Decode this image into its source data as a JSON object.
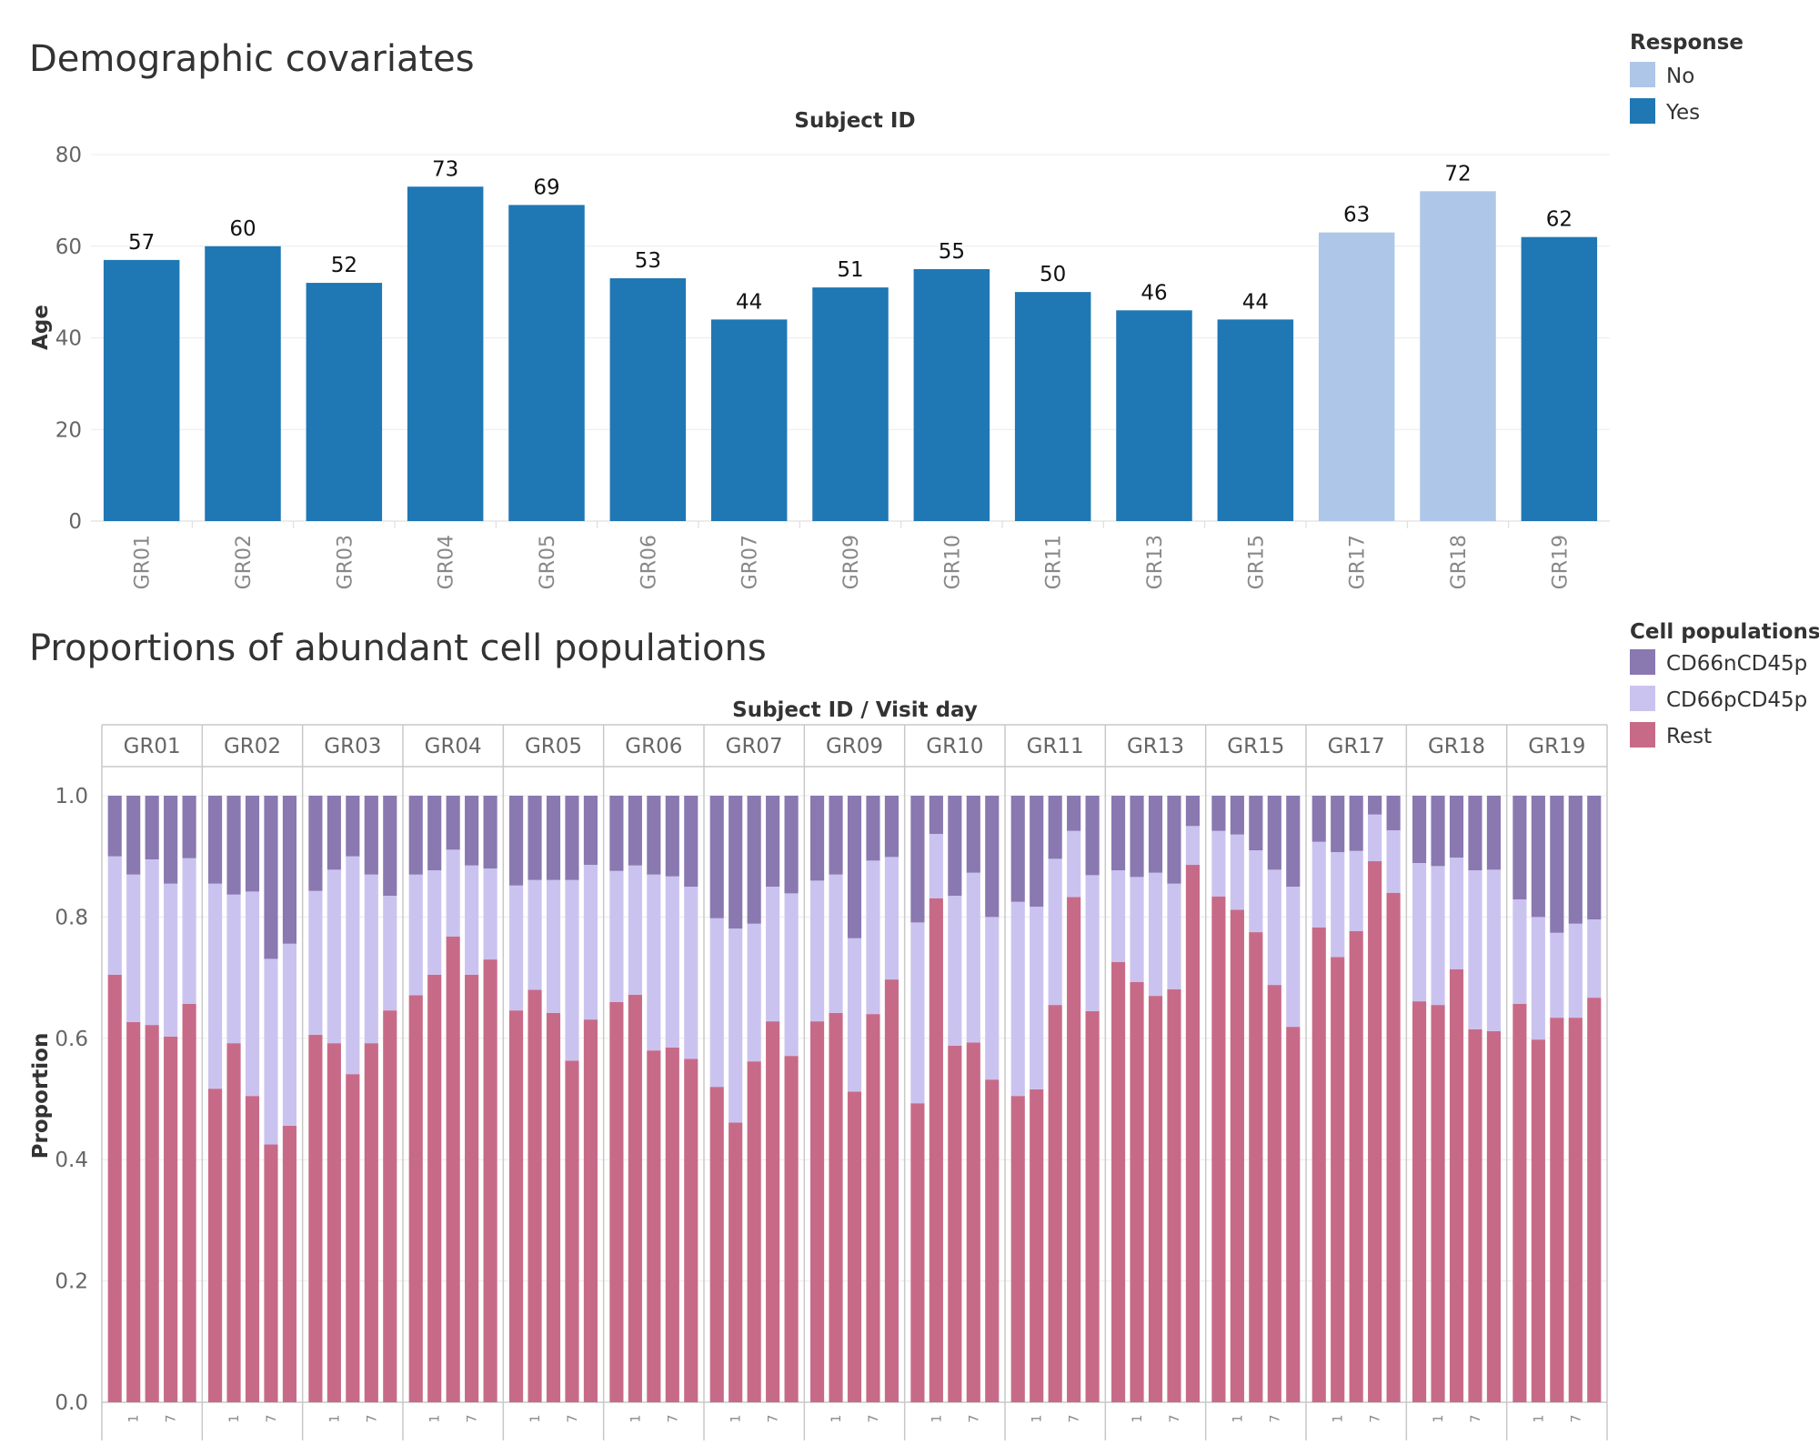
{
  "chart_data": [
    {
      "type": "bar",
      "title": "Demographic covariates",
      "xlabel": "Subject ID",
      "ylabel": "Age",
      "ylim": [
        0,
        80
      ],
      "yticks": [
        0,
        20,
        40,
        60,
        80
      ],
      "grid": true,
      "legend": {
        "title": "Response",
        "position": "top-right",
        "entries": [
          {
            "label": "No",
            "color": "#aec7e8"
          },
          {
            "label": "Yes",
            "color": "#1f77b4"
          }
        ]
      },
      "categories": [
        "GR01",
        "GR02",
        "GR03",
        "GR04",
        "GR05",
        "GR06",
        "GR07",
        "GR09",
        "GR10",
        "GR11",
        "GR13",
        "GR15",
        "GR17",
        "GR18",
        "GR19"
      ],
      "values": [
        57,
        60,
        52,
        73,
        69,
        53,
        44,
        51,
        55,
        50,
        46,
        44,
        63,
        72,
        62
      ],
      "response": [
        "Yes",
        "Yes",
        "Yes",
        "Yes",
        "Yes",
        "Yes",
        "Yes",
        "Yes",
        "Yes",
        "Yes",
        "Yes",
        "Yes",
        "No",
        "No",
        "Yes"
      ],
      "data_labels": true
    },
    {
      "type": "bar",
      "stacked": true,
      "title": "Proportions of abundant cell populations",
      "xlabel": "Subject ID  /  Visit day",
      "ylabel": "Proportion",
      "ylim": [
        0,
        1.0
      ],
      "yticks": [
        "0.0",
        "0.2",
        "0.4",
        "0.6",
        "0.8",
        "1.0"
      ],
      "grid": true,
      "legend": {
        "title": "Cell populations",
        "position": "top-right",
        "entries": [
          {
            "label": "CD66nCD45p",
            "color": "#8a78b0"
          },
          {
            "label": "CD66pCD45p",
            "color": "#cbc3ef"
          },
          {
            "label": "Rest",
            "color": "#c76a88"
          }
        ]
      },
      "visit_tick_labels": [
        "1",
        "7"
      ],
      "subjects": [
        {
          "id": "GR01",
          "rest": [
            0.705,
            0.627,
            0.622,
            0.603,
            0.657
          ],
          "cd66p": [
            0.195,
            0.243,
            0.273,
            0.252,
            0.24
          ]
        },
        {
          "id": "GR02",
          "rest": [
            0.517,
            0.592,
            0.505,
            0.425,
            0.456
          ],
          "cd66p": [
            0.338,
            0.245,
            0.337,
            0.306,
            0.3
          ]
        },
        {
          "id": "GR03",
          "rest": [
            0.606,
            0.592,
            0.541,
            0.592,
            0.646
          ],
          "cd66p": [
            0.237,
            0.286,
            0.359,
            0.278,
            0.189
          ]
        },
        {
          "id": "GR04",
          "rest": [
            0.671,
            0.705,
            0.768,
            0.705,
            0.73
          ],
          "cd66p": [
            0.199,
            0.172,
            0.143,
            0.18,
            0.15
          ]
        },
        {
          "id": "GR05",
          "rest": [
            0.646,
            0.68,
            0.642,
            0.563,
            0.631
          ],
          "cd66p": [
            0.206,
            0.181,
            0.219,
            0.298,
            0.255
          ]
        },
        {
          "id": "GR06",
          "rest": [
            0.66,
            0.672,
            0.58,
            0.585,
            0.566
          ],
          "cd66p": [
            0.216,
            0.213,
            0.29,
            0.282,
            0.284
          ]
        },
        {
          "id": "GR07",
          "rest": [
            0.52,
            0.461,
            0.562,
            0.628,
            0.571
          ],
          "cd66p": [
            0.278,
            0.32,
            0.227,
            0.222,
            0.268
          ]
        },
        {
          "id": "GR09",
          "rest": [
            0.628,
            0.642,
            0.512,
            0.64,
            0.697
          ],
          "cd66p": [
            0.232,
            0.228,
            0.253,
            0.253,
            0.202
          ]
        },
        {
          "id": "GR10",
          "rest": [
            0.493,
            0.831,
            0.588,
            0.593,
            0.532
          ],
          "cd66p": [
            0.298,
            0.106,
            0.247,
            0.28,
            0.268
          ]
        },
        {
          "id": "GR11",
          "rest": [
            0.505,
            0.516,
            0.655,
            0.833,
            0.645
          ],
          "cd66p": [
            0.32,
            0.301,
            0.241,
            0.109,
            0.224
          ]
        },
        {
          "id": "GR13",
          "rest": [
            0.726,
            0.693,
            0.67,
            0.681,
            0.886
          ],
          "cd66p": [
            0.151,
            0.173,
            0.203,
            0.174,
            0.064
          ]
        },
        {
          "id": "GR15",
          "rest": [
            0.834,
            0.812,
            0.775,
            0.688,
            0.619
          ],
          "cd66p": [
            0.108,
            0.124,
            0.135,
            0.19,
            0.231
          ]
        },
        {
          "id": "GR17",
          "rest": [
            0.783,
            0.734,
            0.777,
            0.892,
            0.84
          ],
          "cd66p": [
            0.141,
            0.173,
            0.132,
            0.077,
            0.103
          ]
        },
        {
          "id": "GR18",
          "rest": [
            0.661,
            0.655,
            0.714,
            0.615,
            0.612
          ],
          "cd66p": [
            0.228,
            0.229,
            0.184,
            0.262,
            0.266
          ]
        },
        {
          "id": "GR19",
          "rest": [
            0.657,
            0.598,
            0.634,
            0.634,
            0.667
          ],
          "cd66p": [
            0.172,
            0.202,
            0.14,
            0.155,
            0.129
          ]
        }
      ]
    }
  ]
}
